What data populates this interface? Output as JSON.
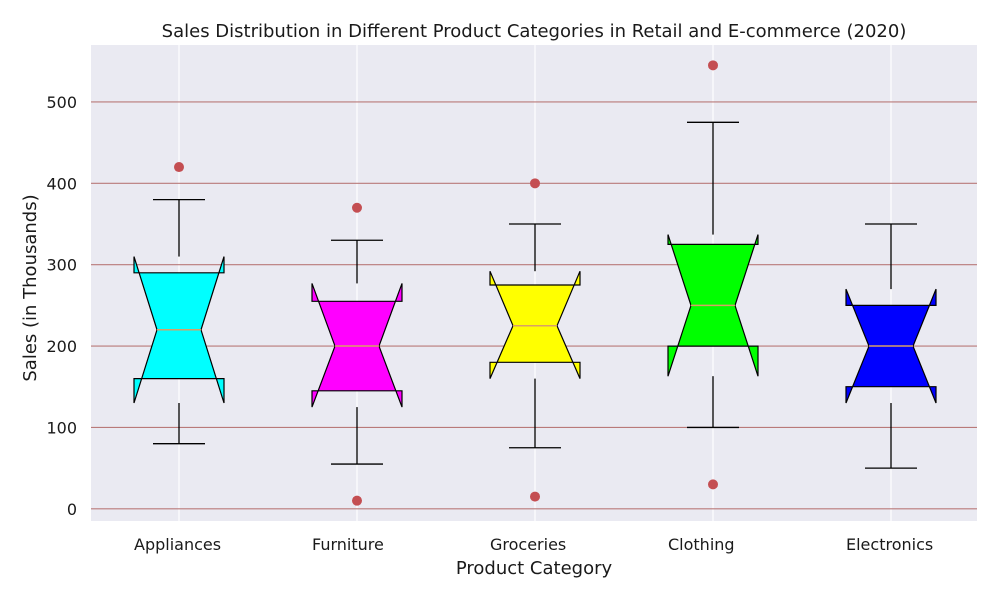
{
  "chart_data": {
    "type": "box",
    "title": "Sales Distribution in Different Product Categories in Retail and E-commerce (2020)",
    "xlabel": "Product Category",
    "ylabel": "Sales (in Thousands)",
    "ylim": [
      -15,
      570
    ],
    "yticks": [
      0,
      100,
      200,
      300,
      400,
      500
    ],
    "ytick_labels": [
      "0",
      "100",
      "200",
      "300",
      "400",
      "500"
    ],
    "grid": {
      "x": true,
      "y": true,
      "background": "#EAEAF2",
      "x_grid_color": "#FFFFFF",
      "y_grid_color": "#B97A7A"
    },
    "notched": true,
    "median_color": "#D9A066",
    "outlier_color": "#C44E52",
    "categories": [
      "Appliances",
      "Furniture",
      "Groceries",
      "Clothing",
      "Electronics"
    ],
    "boxes": [
      {
        "category": "Appliances",
        "color": "#00FFFF",
        "whisker_low": 80,
        "q1": 160,
        "median": 220,
        "q3": 290,
        "whisker_high": 380,
        "notch_low": 130,
        "notch_high": 310,
        "outliers": [
          420
        ]
      },
      {
        "category": "Furniture",
        "color": "#FF00FF",
        "whisker_low": 55,
        "q1": 145,
        "median": 200,
        "q3": 255,
        "whisker_high": 330,
        "notch_low": 125,
        "notch_high": 277,
        "outliers": [
          10,
          370
        ]
      },
      {
        "category": "Groceries",
        "color": "#FFFF00",
        "whisker_low": 75,
        "q1": 180,
        "median": 225,
        "q3": 275,
        "whisker_high": 350,
        "notch_low": 160,
        "notch_high": 292,
        "outliers": [
          15,
          400
        ]
      },
      {
        "category": "Clothing",
        "color": "#00FF00",
        "whisker_low": 100,
        "q1": 200,
        "median": 250,
        "q3": 325,
        "whisker_high": 475,
        "notch_low": 163,
        "notch_high": 337,
        "outliers": [
          30,
          545
        ]
      },
      {
        "category": "Electronics",
        "color": "#0000FF",
        "whisker_low": 50,
        "q1": 150,
        "median": 200,
        "q3": 250,
        "whisker_high": 350,
        "notch_low": 130,
        "notch_high": 270,
        "outliers": []
      }
    ]
  }
}
